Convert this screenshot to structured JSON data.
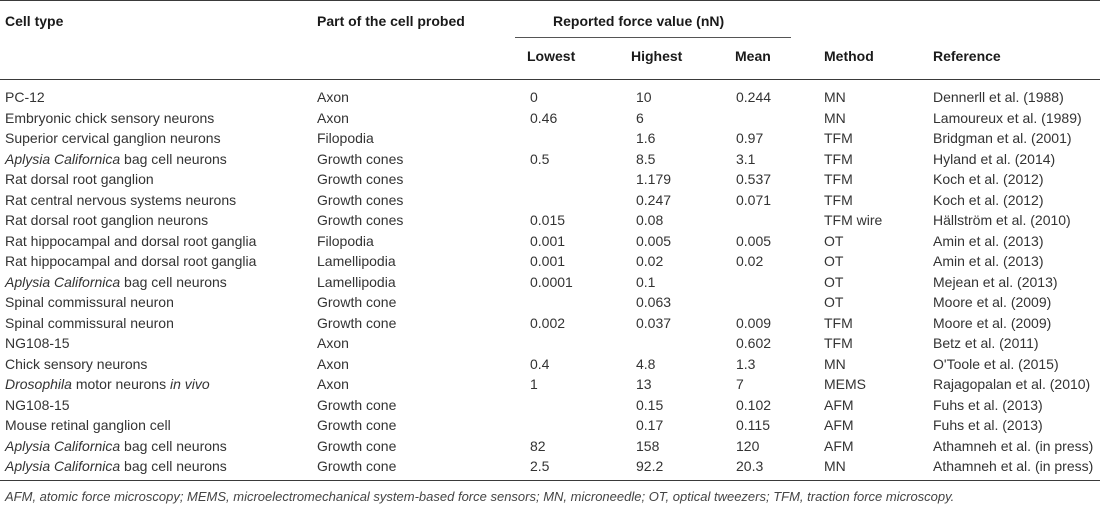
{
  "headers": {
    "cell_type": "Cell type",
    "part": "Part of the cell probed",
    "force_group": "Reported force value (nN)",
    "lowest": "Lowest",
    "highest": "Highest",
    "mean": "Mean",
    "method": "Method",
    "reference": "Reference"
  },
  "rows": [
    {
      "cell_pre": "PC-12",
      "cell_it": "",
      "cell_post": "",
      "part": "Axon",
      "low": "0",
      "high": "10",
      "mean": "0.244",
      "method": "MN",
      "ref": "Dennerll et al. (1988)"
    },
    {
      "cell_pre": "Embryonic chick sensory neurons",
      "cell_it": "",
      "cell_post": "",
      "part": "Axon",
      "low": "0.46",
      "high": "6",
      "mean": "",
      "method": "MN",
      "ref": "Lamoureux et al. (1989)"
    },
    {
      "cell_pre": "Superior cervical ganglion neurons",
      "cell_it": "",
      "cell_post": "",
      "part": "Filopodia",
      "low": "",
      "high": "1.6",
      "mean": "0.97",
      "method": "TFM",
      "ref": "Bridgman et al. (2001)"
    },
    {
      "cell_pre": "",
      "cell_it": "Aplysia Californica",
      "cell_post": " bag cell neurons",
      "part": "Growth cones",
      "low": "0.5",
      "high": "8.5",
      "mean": "3.1",
      "method": "TFM",
      "ref": "Hyland et al. (2014)"
    },
    {
      "cell_pre": "Rat dorsal root ganglion",
      "cell_it": "",
      "cell_post": "",
      "part": "Growth cones",
      "low": "",
      "high": "1.179",
      "mean": "0.537",
      "method": "TFM",
      "ref": "Koch et al. (2012)"
    },
    {
      "cell_pre": "Rat central nervous systems neurons",
      "cell_it": "",
      "cell_post": "",
      "part": "Growth cones",
      "low": "",
      "high": "0.247",
      "mean": "0.071",
      "method": "TFM",
      "ref": "Koch et al. (2012)"
    },
    {
      "cell_pre": "Rat dorsal root ganglion neurons",
      "cell_it": "",
      "cell_post": "",
      "part": "Growth cones",
      "low": "0.015",
      "high": "0.08",
      "mean": "",
      "method": "TFM wire",
      "ref": "Hällström et al. (2010)"
    },
    {
      "cell_pre": "Rat hippocampal and dorsal root ganglia",
      "cell_it": "",
      "cell_post": "",
      "part": "Filopodia",
      "low": "0.001",
      "high": "0.005",
      "mean": "0.005",
      "method": "OT",
      "ref": "Amin et al. (2013)"
    },
    {
      "cell_pre": "Rat hippocampal and dorsal root ganglia",
      "cell_it": "",
      "cell_post": "",
      "part": "Lamellipodia",
      "low": "0.001",
      "high": "0.02",
      "mean": "0.02",
      "method": "OT",
      "ref": "Amin et al. (2013)"
    },
    {
      "cell_pre": "",
      "cell_it": "Aplysia Californica",
      "cell_post": " bag cell neurons",
      "part": "Lamellipodia",
      "low": "0.0001",
      "high": "0.1",
      "mean": "",
      "method": "OT",
      "ref": "Mejean et al. (2013)"
    },
    {
      "cell_pre": "Spinal commissural neuron",
      "cell_it": "",
      "cell_post": "",
      "part": "Growth cone",
      "low": "",
      "high": "0.063",
      "mean": "",
      "method": "OT",
      "ref": "Moore et al. (2009)"
    },
    {
      "cell_pre": "Spinal commissural neuron",
      "cell_it": "",
      "cell_post": "",
      "part": "Growth cone",
      "low": "0.002",
      "high": "0.037",
      "mean": "0.009",
      "method": "TFM",
      "ref": "Moore et al. (2009)"
    },
    {
      "cell_pre": "NG108-15",
      "cell_it": "",
      "cell_post": "",
      "part": "Axon",
      "low": "",
      "high": "",
      "mean": "0.602",
      "method": "TFM",
      "ref": "Betz et al. (2011)"
    },
    {
      "cell_pre": "Chick sensory neurons",
      "cell_it": "",
      "cell_post": "",
      "part": "Axon",
      "low": "0.4",
      "high": "4.8",
      "mean": "1.3",
      "method": "MN",
      "ref": "O'Toole et al. (2015)"
    },
    {
      "cell_pre": "",
      "cell_it": "Drosophila",
      "cell_post": " motor neurons ",
      "cell_it2": "in vivo",
      "part": "Axon",
      "low": "1",
      "high": "13",
      "mean": "7",
      "method": "MEMS",
      "ref": "Rajagopalan et al. (2010)"
    },
    {
      "cell_pre": "NG108-15",
      "cell_it": "",
      "cell_post": "",
      "part": "Growth cone",
      "low": "",
      "high": "0.15",
      "mean": "0.102",
      "method": "AFM",
      "ref": "Fuhs et al. (2013)"
    },
    {
      "cell_pre": "Mouse retinal ganglion cell",
      "cell_it": "",
      "cell_post": "",
      "part": "Growth cone",
      "low": "",
      "high": "0.17",
      "mean": "0.115",
      "method": "AFM",
      "ref": "Fuhs et al. (2013)"
    },
    {
      "cell_pre": "",
      "cell_it": "Aplysia Californica",
      "cell_post": " bag cell neurons",
      "part": "Growth cone",
      "low": "82",
      "high": "158",
      "mean": "120",
      "method": "AFM",
      "ref": "Athamneh et al. (in press)"
    },
    {
      "cell_pre": "",
      "cell_it": "Aplysia Californica",
      "cell_post": " bag cell neurons",
      "part": "Growth cone",
      "low": "2.5",
      "high": "92.2",
      "mean": "20.3",
      "method": "MN",
      "ref": "Athamneh et al. (in press)"
    }
  ],
  "footnote": "AFM, atomic force microscopy; MEMS, microelectromechanical system-based force sensors; MN, microneedle; OT, optical tweezers; TFM, traction force microscopy."
}
